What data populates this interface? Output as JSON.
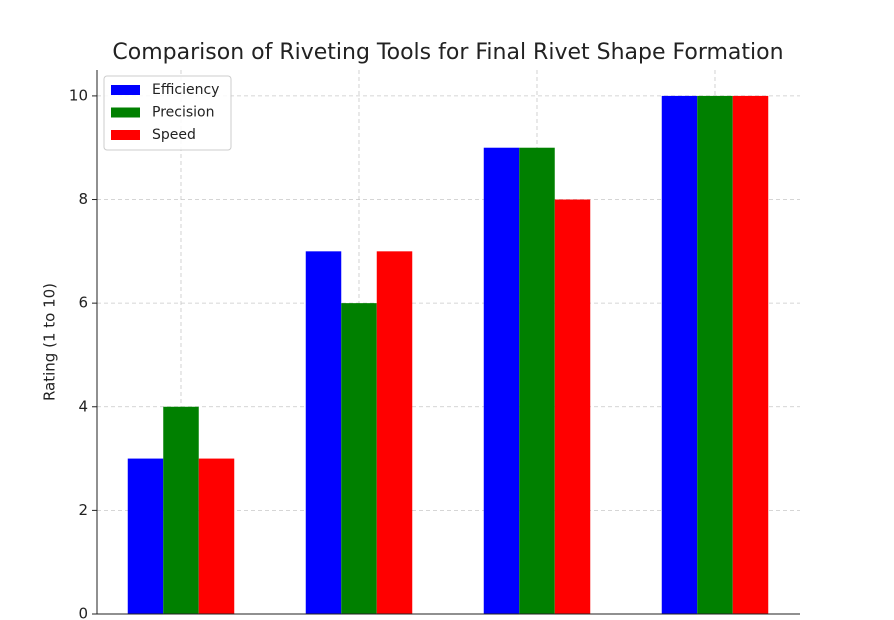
{
  "chart_data": {
    "type": "bar",
    "title": "Comparison of Riveting Tools for Final Rivet Shape Formation",
    "y_label": "Rating (1 to 10)",
    "categories": [
      null,
      null,
      null,
      null
    ],
    "series": [
      {
        "name": "Efficiency",
        "color": "#0000ff",
        "values": [
          3,
          7,
          9,
          10
        ]
      },
      {
        "name": "Precision",
        "color": "#008000",
        "values": [
          4,
          6,
          9,
          10
        ]
      },
      {
        "name": "Speed",
        "color": "#ff0000",
        "values": [
          3,
          7,
          8,
          10
        ]
      }
    ],
    "ylim": [
      0,
      10.5
    ],
    "yticks": [
      0,
      2,
      4,
      6,
      8,
      10
    ],
    "grid": true,
    "legend": "upper left"
  }
}
